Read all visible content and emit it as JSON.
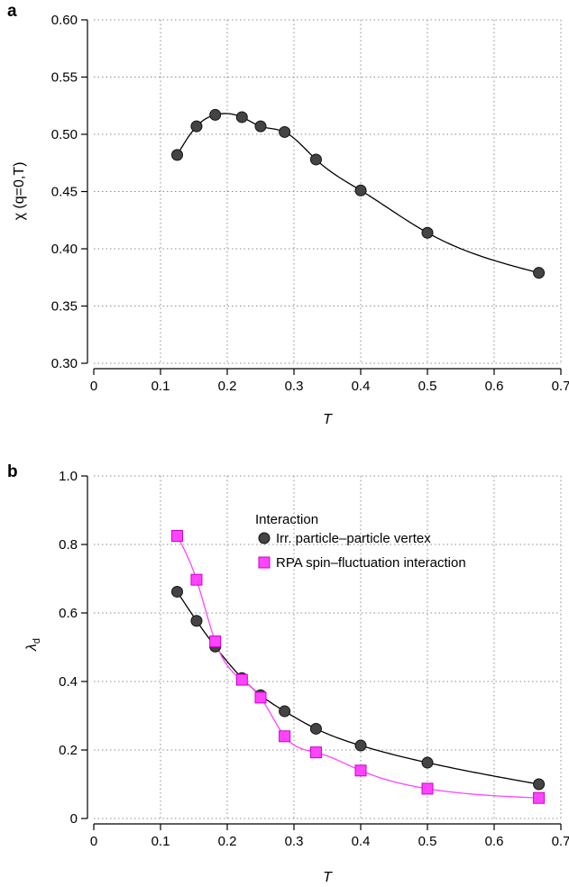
{
  "chart_data": [
    {
      "panel": "a",
      "type": "line",
      "xlabel": "T",
      "ylabel": "χ (q=0,T)",
      "xlim": [
        0,
        0.7
      ],
      "ylim": [
        0.3,
        0.6
      ],
      "xticks": [
        "0",
        "0.1",
        "0.2",
        "0.3",
        "0.4",
        "0.5",
        "0.6",
        "0.7"
      ],
      "yticks": [
        "0.30",
        "0.35",
        "0.40",
        "0.45",
        "0.50",
        "0.55",
        "0.60"
      ],
      "grid": true,
      "series": [
        {
          "color": "#444444",
          "marker": "circle",
          "x": [
            0.125,
            0.154,
            0.182,
            0.222,
            0.25,
            0.286,
            0.333,
            0.4,
            0.5,
            0.667
          ],
          "y": [
            0.482,
            0.507,
            0.517,
            0.515,
            0.507,
            0.502,
            0.478,
            0.451,
            0.414,
            0.379
          ]
        }
      ]
    },
    {
      "panel": "b",
      "type": "line",
      "xlabel": "T",
      "ylabel": "λd",
      "xlim": [
        0,
        0.7
      ],
      "ylim": [
        0,
        1.0
      ],
      "xticks": [
        "0",
        "0.1",
        "0.2",
        "0.3",
        "0.4",
        "0.5",
        "0.6",
        "0.7"
      ],
      "yticks": [
        "0",
        "0.2",
        "0.4",
        "0.6",
        "0.8",
        "1.0"
      ],
      "grid": true,
      "legend": {
        "title": "Interaction",
        "placement": "top-right"
      },
      "series": [
        {
          "name": "Irr. particle–particle vertex",
          "color": "#444444",
          "marker": "circle",
          "x": [
            0.125,
            0.154,
            0.182,
            0.222,
            0.25,
            0.286,
            0.333,
            0.4,
            0.5,
            0.667
          ],
          "y": [
            0.662,
            0.577,
            0.502,
            0.41,
            0.36,
            0.313,
            0.262,
            0.213,
            0.163,
            0.1
          ]
        },
        {
          "name": "RPA spin–fluctuation interaction",
          "color": "#ff44ff",
          "marker": "square",
          "x": [
            0.125,
            0.154,
            0.182,
            0.222,
            0.25,
            0.286,
            0.333,
            0.4,
            0.5,
            0.667
          ],
          "y": [
            0.825,
            0.697,
            0.517,
            0.405,
            0.353,
            0.24,
            0.193,
            0.14,
            0.087,
            0.06
          ]
        }
      ]
    }
  ]
}
